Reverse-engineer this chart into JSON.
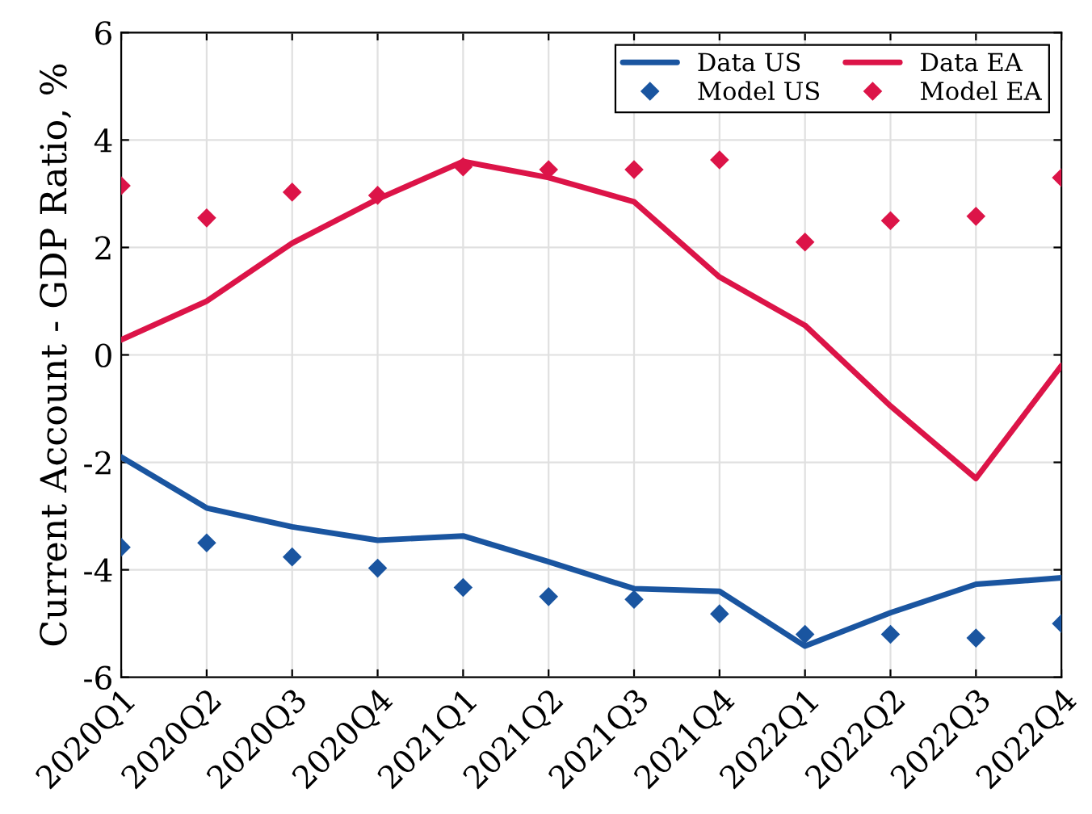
{
  "chart_data": {
    "type": "line",
    "ylabel": "Current Account - GDP Ratio, %",
    "categories": [
      "2020Q1",
      "2020Q2",
      "2020Q3",
      "2020Q4",
      "2021Q1",
      "2021Q2",
      "2021Q3",
      "2021Q4",
      "2022Q1",
      "2022Q2",
      "2022Q3",
      "2022Q4"
    ],
    "series": [
      {
        "name": "Data US",
        "color": "#1a55a0",
        "values": [
          -1.9,
          -2.85,
          -3.2,
          -3.45,
          -3.37,
          -3.85,
          -4.35,
          -4.4,
          -5.42,
          -4.8,
          -4.27,
          -4.15
        ]
      },
      {
        "name": "Data EA",
        "color": "#dc1448",
        "values": [
          0.28,
          1.0,
          2.08,
          2.9,
          3.6,
          3.3,
          2.85,
          1.45,
          0.55,
          -0.95,
          -2.3,
          -0.2
        ]
      },
      {
        "name": "Model US",
        "type": "scatter",
        "marker": "diamond",
        "color": "#1a55a0",
        "values": [
          -3.58,
          -3.5,
          -3.76,
          -3.97,
          -4.33,
          -4.5,
          -4.55,
          -4.82,
          -5.2,
          -5.2,
          -5.27,
          -5.0
        ]
      },
      {
        "name": "Model EA",
        "type": "scatter",
        "marker": "diamond",
        "color": "#dc1448",
        "values": [
          3.15,
          2.55,
          3.03,
          2.97,
          3.5,
          3.45,
          3.45,
          3.63,
          2.1,
          2.5,
          2.58,
          3.3
        ]
      }
    ],
    "ylim": [
      -6,
      6
    ],
    "yticks": [
      -6,
      -4,
      -2,
      0,
      2,
      4,
      6
    ],
    "grid": true,
    "legend": "top right",
    "line_style": "solid"
  }
}
